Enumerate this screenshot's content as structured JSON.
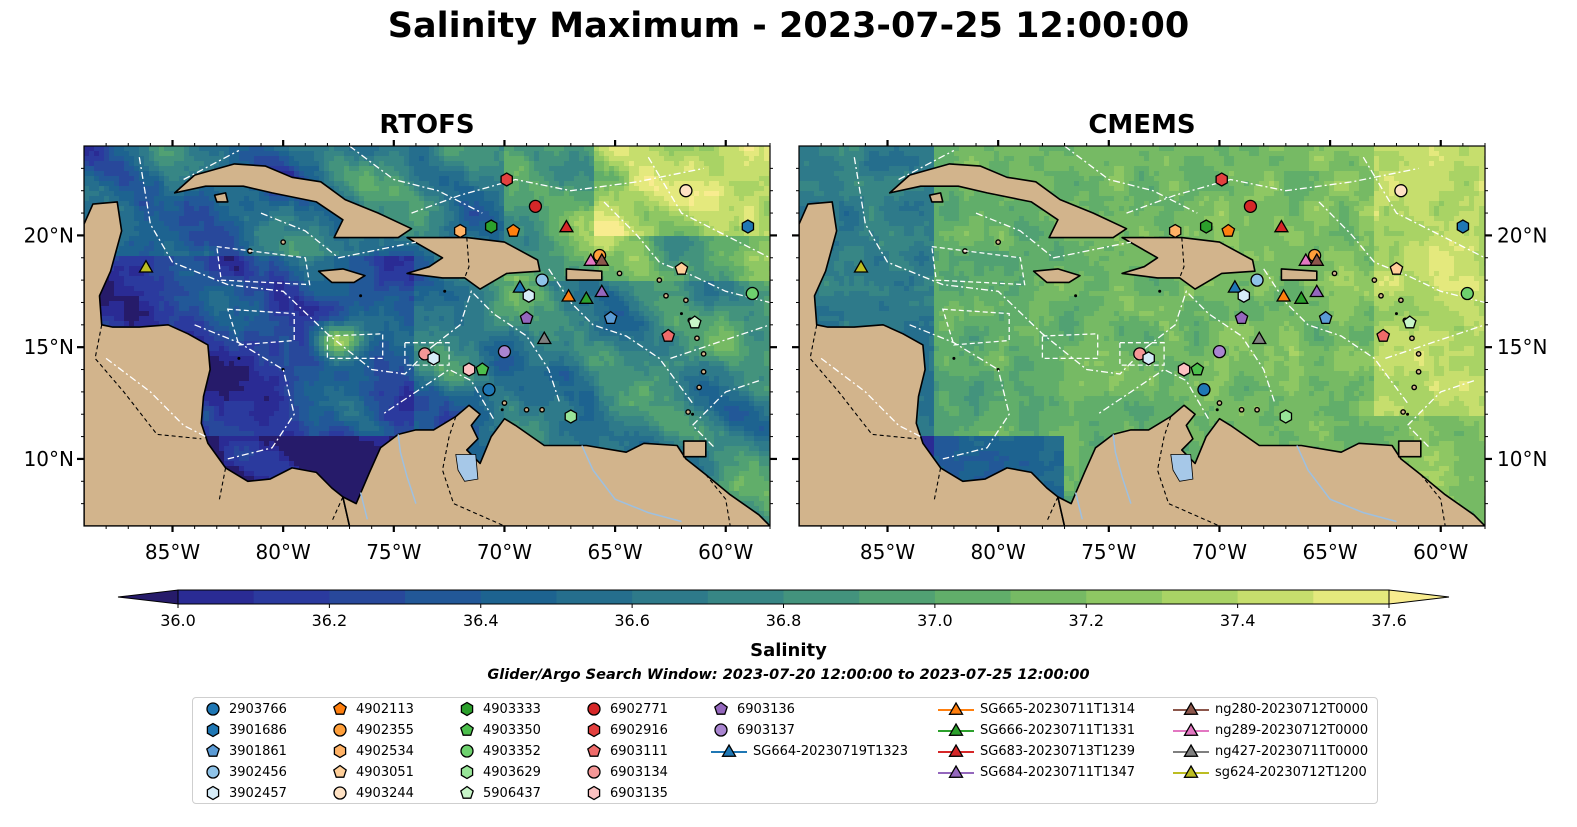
{
  "title": "Salinity Maximum - 2023-07-25 12:00:00",
  "panels": [
    {
      "title": "RTOFS",
      "palette": "rtofs"
    },
    {
      "title": "CMEMS",
      "palette": "cmems"
    }
  ],
  "map": {
    "lon_range": [
      -89,
      -58
    ],
    "lat_range": [
      7,
      24
    ],
    "lon_ticks": [
      {
        "value": -85,
        "label": "85°W"
      },
      {
        "value": -80,
        "label": "80°W"
      },
      {
        "value": -75,
        "label": "75°W"
      },
      {
        "value": -70,
        "label": "70°W"
      },
      {
        "value": -65,
        "label": "65°W"
      },
      {
        "value": -60,
        "label": "60°W"
      }
    ],
    "lat_ticks": [
      {
        "value": 20,
        "label": "20°N"
      },
      {
        "value": 15,
        "label": "15°N"
      },
      {
        "value": 10,
        "label": "10°N"
      }
    ],
    "land_color": "#d2b48c",
    "boundary_color": "#ffffff"
  },
  "colorbar": {
    "label": "Salinity",
    "min": 36.0,
    "max": 37.6,
    "step": 0.1,
    "extend": "both",
    "tick_labels": [
      "36.0",
      "36.2",
      "36.4",
      "36.6",
      "36.8",
      "37.0",
      "37.2",
      "37.4",
      "37.6"
    ],
    "colors": [
      "#261b6a",
      "#2a2b94",
      "#2b3a9e",
      "#28489b",
      "#225898",
      "#1d6390",
      "#256e8d",
      "#2e7a8a",
      "#378685",
      "#43937d",
      "#51a173",
      "#61ae6a",
      "#76ba64",
      "#8ec763",
      "#a9d365",
      "#c6de6d",
      "#e4e97d",
      "#f8ec8f"
    ],
    "cmap_name": "haline"
  },
  "search_window": "Glider/Argo Search Window: 2023-07-20 12:00:00 to 2023-07-25 12:00:00",
  "legend": {
    "argo": [
      {
        "id": "2903766",
        "marker": "circle",
        "color": "#1f77b4"
      },
      {
        "id": "3901686",
        "marker": "hexagon",
        "color": "#1f77b4"
      },
      {
        "id": "3901861",
        "marker": "pentagon",
        "color": "#5b9bd5"
      },
      {
        "id": "3902456",
        "marker": "circle",
        "color": "#8fc3e8"
      },
      {
        "id": "3902457",
        "marker": "hexagon",
        "color": "#d6ecf8"
      },
      {
        "id": "4902113",
        "marker": "pentagon",
        "color": "#ff7f0e"
      },
      {
        "id": "4902355",
        "marker": "circle",
        "color": "#ff9f3a"
      },
      {
        "id": "4902534",
        "marker": "hexagon",
        "color": "#ffb266"
      },
      {
        "id": "4903051",
        "marker": "pentagon",
        "color": "#ffcf99"
      },
      {
        "id": "4903244",
        "marker": "circle",
        "color": "#ffe2c4"
      },
      {
        "id": "4903333",
        "marker": "hexagon",
        "color": "#2ca02c"
      },
      {
        "id": "4903350",
        "marker": "pentagon",
        "color": "#4cbf4c"
      },
      {
        "id": "4903352",
        "marker": "circle",
        "color": "#6ed16e"
      },
      {
        "id": "4903629",
        "marker": "hexagon",
        "color": "#98e598"
      },
      {
        "id": "5906437",
        "marker": "pentagon",
        "color": "#c8f5c8"
      },
      {
        "id": "6902771",
        "marker": "circle",
        "color": "#d62728"
      },
      {
        "id": "6902916",
        "marker": "hexagon",
        "color": "#e3403f"
      },
      {
        "id": "6903111",
        "marker": "pentagon",
        "color": "#ef6b6a"
      },
      {
        "id": "6903134",
        "marker": "circle",
        "color": "#f59797"
      },
      {
        "id": "6903135",
        "marker": "hexagon",
        "color": "#fbc1c1"
      },
      {
        "id": "6903136",
        "marker": "pentagon",
        "color": "#9467bd"
      },
      {
        "id": "6903137",
        "marker": "circle",
        "color": "#a985d0"
      }
    ],
    "gliders": [
      {
        "id": "SG664-20230719T1323",
        "color": "#1f77b4"
      },
      {
        "id": "SG665-20230711T1314",
        "color": "#ff7f0e"
      },
      {
        "id": "SG666-20230711T1331",
        "color": "#2ca02c"
      },
      {
        "id": "SG683-20230713T1239",
        "color": "#d62728"
      },
      {
        "id": "SG684-20230711T1347",
        "color": "#9467bd"
      },
      {
        "id": "ng280-20230712T0000",
        "color": "#8c564b"
      },
      {
        "id": "ng289-20230712T0000",
        "color": "#e377c2"
      },
      {
        "id": "ng427-20230711T0000",
        "color": "#7f7f7f"
      },
      {
        "id": "sg624-20230712T1200",
        "color": "#bcbd22"
      }
    ]
  },
  "chart_data": {
    "type": "heatmap",
    "title": "Salinity Maximum - 2023-07-25 12:00:00",
    "variable": "Salinity",
    "xlim": [
      -89,
      -58
    ],
    "ylim": [
      7,
      24
    ],
    "x_ticks": [
      "85°W",
      "80°W",
      "75°W",
      "70°W",
      "65°W",
      "60°W"
    ],
    "y_ticks": [
      "20°N",
      "15°N",
      "10°N"
    ],
    "panels": [
      {
        "name": "RTOFS",
        "observations": [
          {
            "id": "4903244",
            "lon": -61.8,
            "lat": 22.0
          },
          {
            "id": "6902916",
            "lon": -69.9,
            "lat": 22.5
          },
          {
            "id": "6902771",
            "lon": -68.6,
            "lat": 21.3
          },
          {
            "id": "SG683-20230713T1239",
            "lon": -67.2,
            "lat": 20.4
          },
          {
            "id": "3901686",
            "lon": -59.0,
            "lat": 20.4
          },
          {
            "id": "4903333",
            "lon": -70.6,
            "lat": 20.4
          },
          {
            "id": "4902534",
            "lon": -72.0,
            "lat": 20.2
          },
          {
            "id": "4902113",
            "lon": -69.6,
            "lat": 20.2
          },
          {
            "id": "4902355",
            "lon": -65.7,
            "lat": 19.1
          },
          {
            "id": "ng289-20230712T0000",
            "lon": -66.1,
            "lat": 18.9
          },
          {
            "id": "ng280-20230712T0000",
            "lon": -65.6,
            "lat": 18.9
          },
          {
            "id": "4903051",
            "lon": -62.0,
            "lat": 18.5
          },
          {
            "id": "sg624-20230712T1200",
            "lon": -86.2,
            "lat": 18.6
          },
          {
            "id": "3902456",
            "lon": -68.3,
            "lat": 18.0
          },
          {
            "id": "SG664-20230719T1323",
            "lon": -69.3,
            "lat": 17.7
          },
          {
            "id": "3902457",
            "lon": -68.9,
            "lat": 17.3
          },
          {
            "id": "SG665-20230711T1314",
            "lon": -67.1,
            "lat": 17.3
          },
          {
            "id": "SG666-20230711T1331",
            "lon": -66.3,
            "lat": 17.2
          },
          {
            "id": "SG684-20230711T1347",
            "lon": -65.6,
            "lat": 17.5
          },
          {
            "id": "4903352",
            "lon": -58.8,
            "lat": 17.4
          },
          {
            "id": "6903136",
            "lon": -69.0,
            "lat": 16.3
          },
          {
            "id": "3901861",
            "lon": -65.2,
            "lat": 16.3
          },
          {
            "id": "5906437",
            "lon": -61.4,
            "lat": 16.1
          },
          {
            "id": "6903111",
            "lon": -62.6,
            "lat": 15.5
          },
          {
            "id": "ng427-20230711T0000",
            "lon": -68.2,
            "lat": 15.4
          },
          {
            "id": "6903137",
            "lon": -70.0,
            "lat": 14.8
          },
          {
            "id": "6903134",
            "lon": -73.6,
            "lat": 14.7
          },
          {
            "id": "3902457",
            "lon": -73.2,
            "lat": 14.5
          },
          {
            "id": "6903135",
            "lon": -71.6,
            "lat": 14.0
          },
          {
            "id": "4903350",
            "lon": -71.0,
            "lat": 14.0
          },
          {
            "id": "2903766",
            "lon": -70.7,
            "lat": 13.1
          },
          {
            "id": "4903629",
            "lon": -67.0,
            "lat": 11.9
          }
        ]
      },
      {
        "name": "CMEMS",
        "observations": "same positions as RTOFS panel"
      }
    ]
  }
}
